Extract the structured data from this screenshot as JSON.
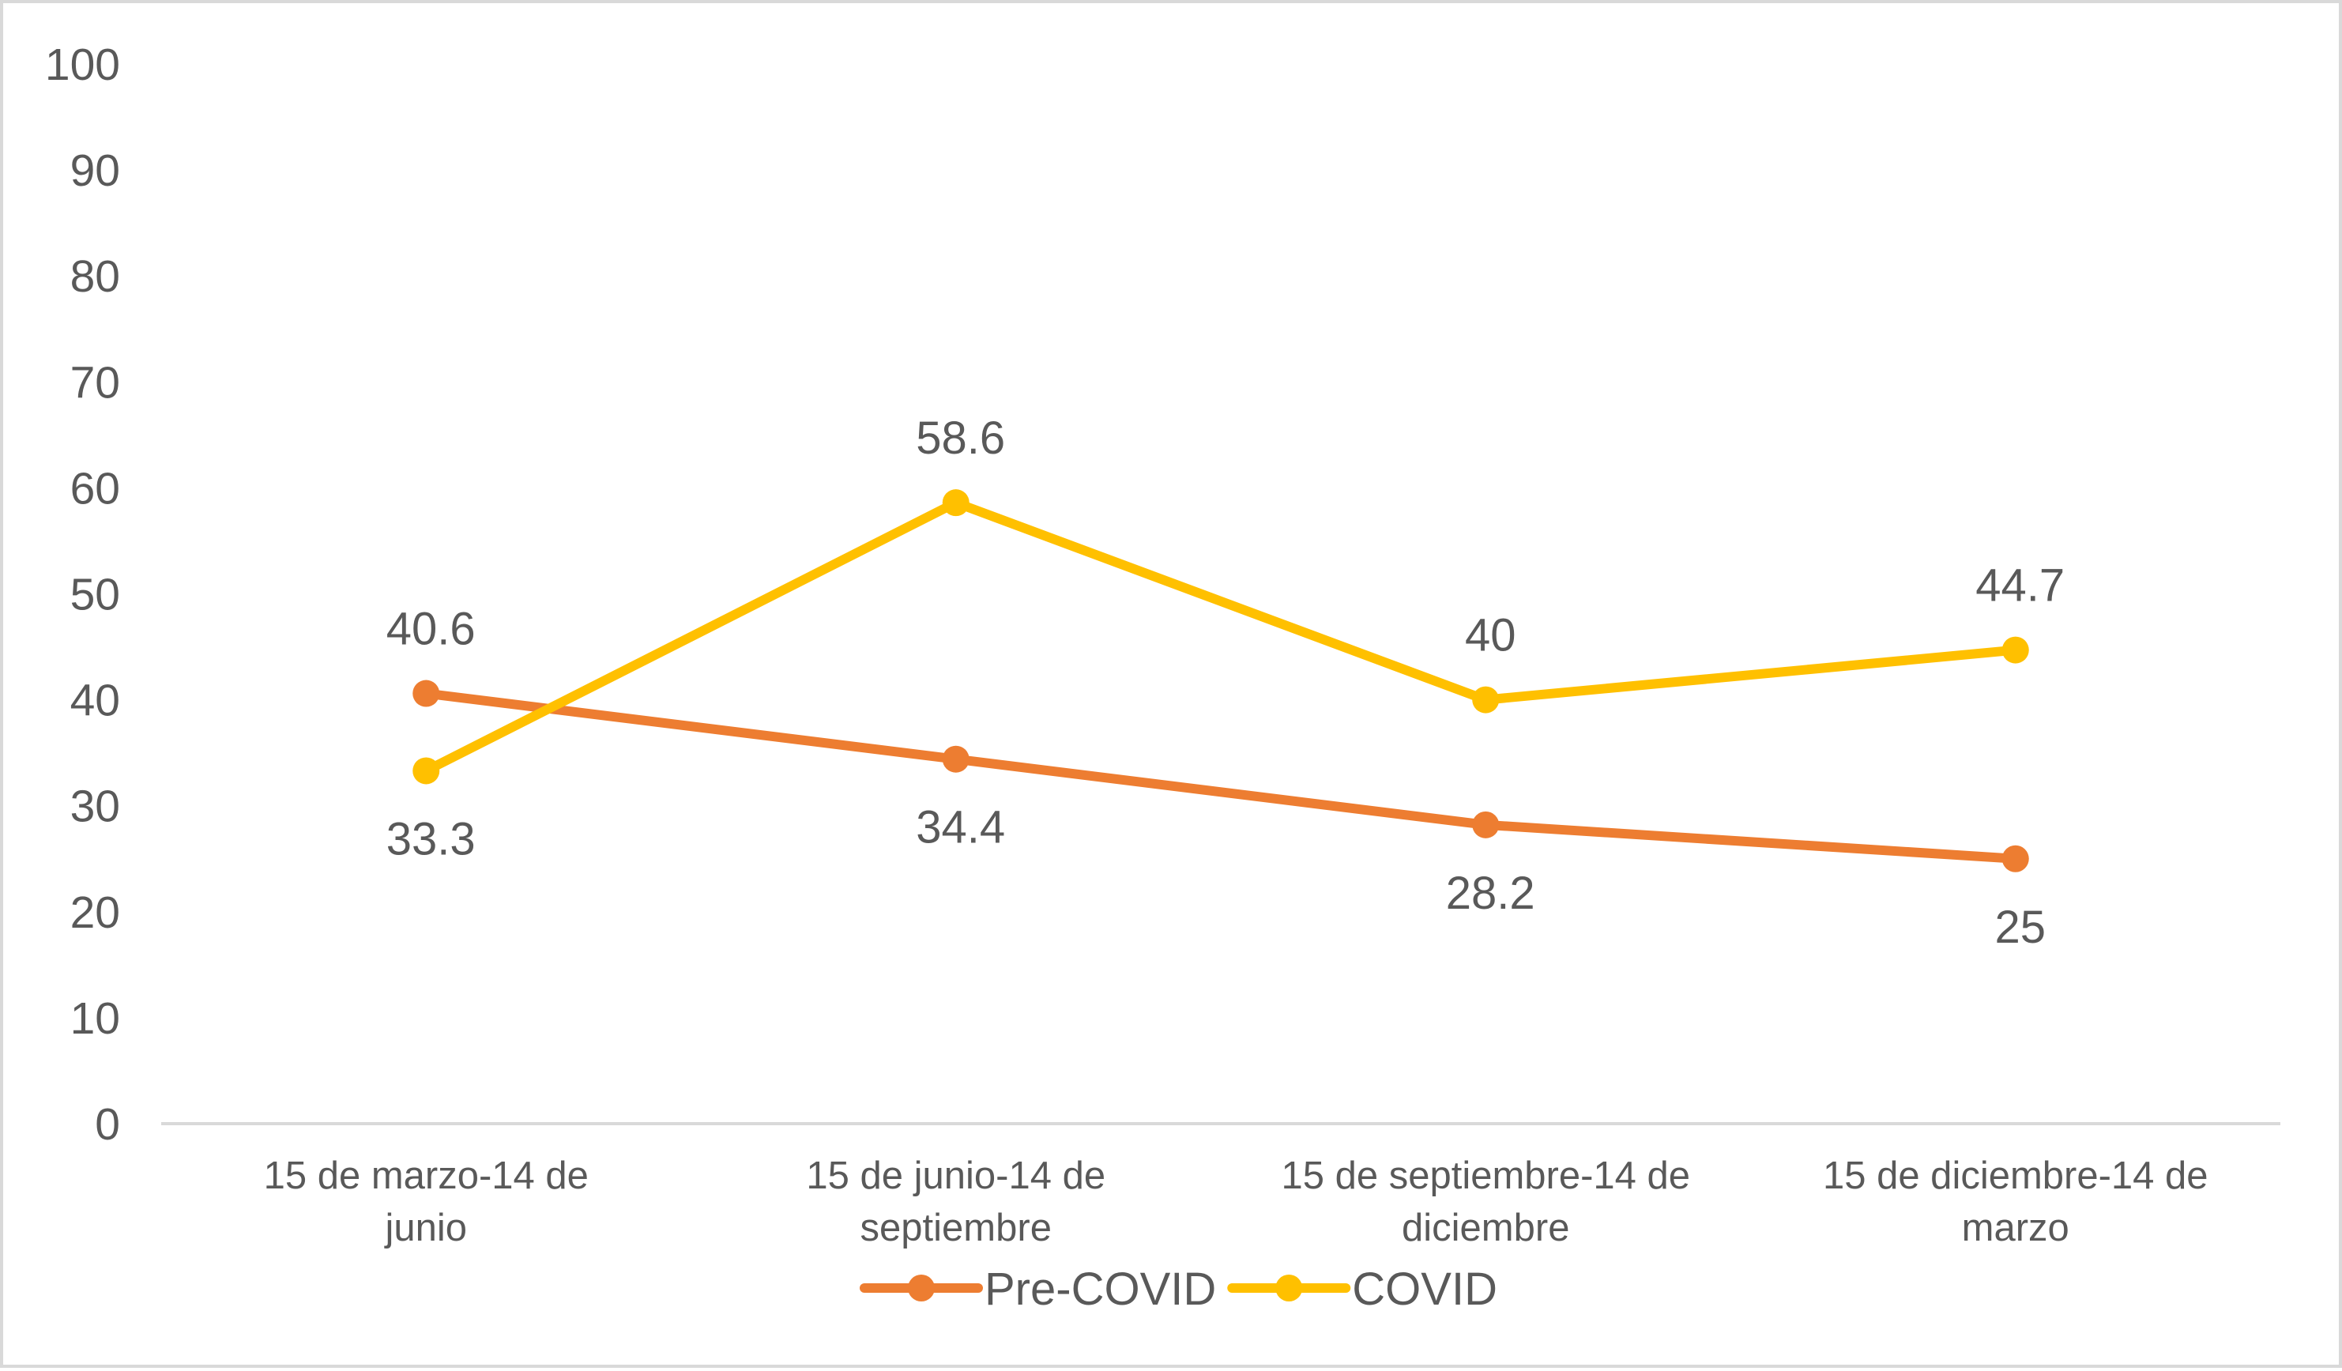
{
  "chart_data": {
    "type": "line",
    "title": "",
    "xlabel": "",
    "ylabel": "",
    "ylim": [
      0,
      100
    ],
    "yticks": [
      0,
      10,
      20,
      30,
      40,
      50,
      60,
      70,
      80,
      90,
      100
    ],
    "grid": false,
    "legend_position": "bottom",
    "categories": [
      [
        "15 de marzo-14 de",
        "junio"
      ],
      [
        "15 de junio-14 de",
        "septiembre"
      ],
      [
        "15 de septiembre-14 de",
        "diciembre"
      ],
      [
        "15 de diciembre-14 de",
        "marzo"
      ]
    ],
    "series": [
      {
        "name": "Pre-COVID",
        "color": "#ED7D31",
        "values": [
          40.6,
          34.4,
          28.2,
          25
        ],
        "labels": [
          "40.6",
          "34.4",
          "28.2",
          "25"
        ],
        "label_positions": [
          "above",
          "below",
          "below",
          "below"
        ]
      },
      {
        "name": "COVID",
        "color": "#FFC000",
        "values": [
          33.3,
          58.6,
          40,
          44.7
        ],
        "labels": [
          "33.3",
          "58.6",
          "40",
          "44.7"
        ],
        "label_positions": [
          "below",
          "above",
          "above",
          "above"
        ]
      }
    ]
  }
}
